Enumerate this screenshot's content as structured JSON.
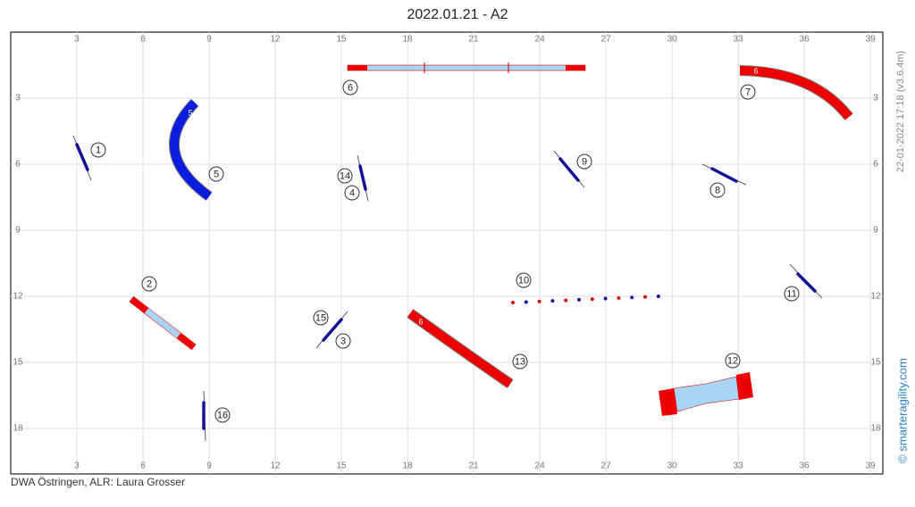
{
  "header": {
    "title": "2022.01.21 - A2"
  },
  "grid": {
    "x_ticks": [
      3,
      6,
      9,
      12,
      15,
      18,
      21,
      24,
      27,
      30,
      33,
      36,
      39
    ],
    "y_ticks": [
      3,
      6,
      9,
      12,
      15,
      18
    ]
  },
  "course": {
    "numbers": [
      1,
      2,
      3,
      4,
      5,
      6,
      7,
      8,
      9,
      10,
      11,
      12,
      13,
      14,
      15,
      16
    ],
    "tunnel_labels": [
      "5",
      "6",
      "6"
    ]
  },
  "side": {
    "timestamp": "22-01-2022 17:18  (v3.6.4m)",
    "copyright": "© smarteragility.com"
  },
  "footer": {
    "text": "DWA Östringen, ALR: Laura Grosser"
  }
}
